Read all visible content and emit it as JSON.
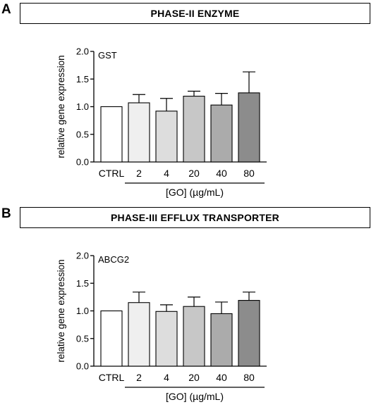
{
  "panels": [
    {
      "letter": "A",
      "header": "PHASE-II ENZYME",
      "gene": "GST",
      "ylabel": "relative gene expression",
      "group_label": "[GO] (µg/mL)"
    },
    {
      "letter": "B",
      "header": "PHASE-III EFFLUX TRANSPORTER",
      "gene": "ABCG2",
      "ylabel": "relative gene expression",
      "group_label": "[GO] (µg/mL)"
    }
  ],
  "chart_data": [
    {
      "type": "bar",
      "title": "GST",
      "ylabel": "relative gene expression",
      "xlabel": "[GO] (µg/mL)",
      "categories": [
        "CTRL",
        "2",
        "4",
        "20",
        "40",
        "80"
      ],
      "values": [
        1.0,
        1.07,
        0.92,
        1.19,
        1.03,
        1.25
      ],
      "errors": [
        0.0,
        0.15,
        0.23,
        0.09,
        0.21,
        0.38
      ],
      "ylim": [
        0,
        2.0
      ],
      "yticks": [
        "0.0",
        "0.5",
        "1.0",
        "1.5",
        "2.0"
      ],
      "bar_colors": [
        "#ffffff",
        "#efefef",
        "#dddddd",
        "#c7c7c7",
        "#ababab",
        "#8c8c8c"
      ],
      "grid": false
    },
    {
      "type": "bar",
      "title": "ABCG2",
      "ylabel": "relative gene expression",
      "xlabel": "[GO] (µg/mL)",
      "categories": [
        "CTRL",
        "2",
        "4",
        "20",
        "40",
        "80"
      ],
      "values": [
        1.0,
        1.15,
        0.99,
        1.08,
        0.95,
        1.19
      ],
      "errors": [
        0.0,
        0.19,
        0.12,
        0.17,
        0.21,
        0.15
      ],
      "ylim": [
        0,
        2.0
      ],
      "yticks": [
        "0.0",
        "0.5",
        "1.0",
        "1.5",
        "2.0"
      ],
      "bar_colors": [
        "#ffffff",
        "#efefef",
        "#dddddd",
        "#c7c7c7",
        "#ababab",
        "#8c8c8c"
      ],
      "grid": false
    }
  ]
}
